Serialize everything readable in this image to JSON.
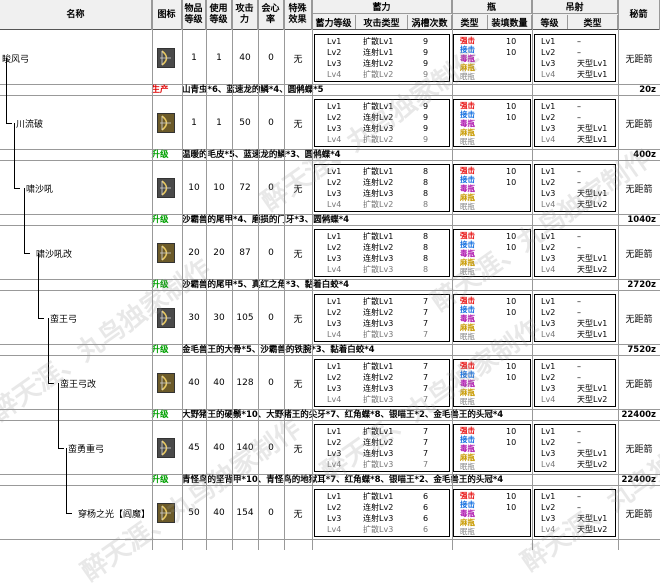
{
  "headers": {
    "name": "名称",
    "icon": "图标",
    "rarity": "物品\n等级",
    "cost": "使用\n等级",
    "attack": "攻击\n力",
    "affinity": "会心\n率",
    "special": "特殊\n效果",
    "charge_group": "蓄力",
    "charge_level": "蓄力等级",
    "attack_type": "攻击类型",
    "slot_count": "涡槽次数",
    "bottle_group": "瓶",
    "bottle_type": "类型",
    "bottle_load": "装填数量",
    "arc_group": "吊射",
    "arc_level": "等级",
    "arc_type": "类型",
    "secret": "秘箭"
  },
  "watermark": [
    "醉天涯、丸鸟独家制作",
    "醉天涯、丸鸟独家制作",
    "醉天涯、丸鸟独家制作",
    "醉天涯、丸鸟独家制作",
    "醉天涯、丸鸟独家制作",
    "醉天涯、丸鸟独家制作"
  ],
  "bottle_names": [
    "强击",
    "接击",
    "毒瓶",
    "麻瓶",
    "眠瓶"
  ],
  "weapons": [
    {
      "name": "睃风弓",
      "rarity": "1",
      "cost": "1",
      "attack": "40",
      "affinity": "0",
      "special": "无",
      "secret": "无距箭",
      "charge": [
        "Lv1",
        "Lv2",
        "Lv3",
        "Lv4"
      ],
      "types": [
        "扩散Lv1",
        "连射Lv1",
        "连射Lv2",
        "扩散Lv2"
      ],
      "slots": [
        "9",
        "9",
        "9",
        "9"
      ],
      "loads": [
        "10",
        "10",
        "",
        ""
      ],
      "arc_lv": [
        "Lv1",
        "Lv2",
        "Lv3",
        "Lv4"
      ],
      "arc_type": [
        "–",
        "–",
        "天型Lv1",
        "天型Lv1"
      ],
      "note_tag": "生产",
      "note": "山青虫*6、蓝速龙的鳞*4、圆鸺蝶*5",
      "price": "20z"
    },
    {
      "name": "川流破",
      "rarity": "1",
      "cost": "1",
      "attack": "50",
      "affinity": "0",
      "special": "无",
      "secret": "无距箭",
      "charge": [
        "Lv1",
        "Lv2",
        "Lv3",
        "Lv4"
      ],
      "types": [
        "扩散Lv1",
        "连射Lv2",
        "连射Lv3",
        "扩散Lv2"
      ],
      "slots": [
        "9",
        "9",
        "9",
        "9"
      ],
      "loads": [
        "10",
        "10",
        "",
        ""
      ],
      "arc_lv": [
        "Lv1",
        "Lv2",
        "Lv3",
        "Lv4"
      ],
      "arc_type": [
        "–",
        "–",
        "天型Lv1",
        "天型Lv1"
      ],
      "note_tag": "升级",
      "note": "温暖的毛皮*5、蓝速龙的鳞*3、圆鸺蝶*4",
      "price": "400z"
    },
    {
      "name": "啸沙吼",
      "rarity": "10",
      "cost": "10",
      "attack": "72",
      "affinity": "0",
      "special": "无",
      "secret": "无距箭",
      "charge": [
        "Lv1",
        "Lv2",
        "Lv3",
        "Lv4"
      ],
      "types": [
        "扩散Lv1",
        "连射Lv2",
        "连射Lv3",
        "扩散Lv2"
      ],
      "slots": [
        "8",
        "8",
        "8",
        "8"
      ],
      "loads": [
        "10",
        "10",
        "",
        ""
      ],
      "arc_lv": [
        "Lv1",
        "Lv2",
        "Lv3",
        "Lv4"
      ],
      "arc_type": [
        "–",
        "–",
        "天型Lv1",
        "天型Lv2"
      ],
      "note_tag": "升级",
      "note": "沙霸兽的尾甲*4、磨损的门牙*3、圆鸺蝶*4",
      "price": "1040z"
    },
    {
      "name": "啸沙吼改",
      "rarity": "20",
      "cost": "20",
      "attack": "87",
      "affinity": "0",
      "special": "无",
      "secret": "无距箭",
      "charge": [
        "Lv1",
        "Lv2",
        "Lv3",
        "Lv4"
      ],
      "types": [
        "扩散Lv1",
        "连射Lv2",
        "连射Lv3",
        "扩散Lv3"
      ],
      "slots": [
        "8",
        "8",
        "8",
        "8"
      ],
      "loads": [
        "10",
        "10",
        "",
        ""
      ],
      "arc_lv": [
        "Lv1",
        "Lv2",
        "Lv3",
        "Lv4"
      ],
      "arc_type": [
        "–",
        "–",
        "天型Lv1",
        "天型Lv2"
      ],
      "note_tag": "升级",
      "note": "沙霸兽的尾甲*5、真红之角*3、黏着白蛟*4",
      "price": "2720z"
    },
    {
      "name": "蛮王弓",
      "rarity": "30",
      "cost": "30",
      "attack": "105",
      "affinity": "0",
      "special": "无",
      "secret": "无距箭",
      "charge": [
        "Lv1",
        "Lv2",
        "Lv3",
        "Lv4"
      ],
      "types": [
        "扩散Lv1",
        "连射Lv2",
        "连射Lv3",
        "扩散Lv3"
      ],
      "slots": [
        "7",
        "7",
        "7",
        "7"
      ],
      "loads": [
        "10",
        "10",
        "",
        ""
      ],
      "arc_lv": [
        "Lv1",
        "Lv2",
        "Lv3",
        "Lv4"
      ],
      "arc_type": [
        "–",
        "–",
        "天型Lv1",
        "天型Lv1"
      ],
      "note_tag": "升级",
      "note": "金毛兽王的大骨*5、沙霸兽的铁腕*3、黏着白蛟*4",
      "price": "7520z"
    },
    {
      "name": "蛮王弓改",
      "rarity": "40",
      "cost": "40",
      "attack": "128",
      "affinity": "0",
      "special": "无",
      "secret": "无距箭",
      "charge": [
        "Lv1",
        "Lv2",
        "Lv3",
        "Lv4"
      ],
      "types": [
        "扩散Lv1",
        "连射Lv2",
        "连射Lv3",
        "扩散Lv3"
      ],
      "slots": [
        "7",
        "7",
        "7",
        "7"
      ],
      "loads": [
        "10",
        "10",
        "",
        ""
      ],
      "arc_lv": [
        "Lv1",
        "Lv2",
        "Lv3",
        "Lv4"
      ],
      "arc_type": [
        "–",
        "–",
        "天型Lv1",
        "天型Lv2"
      ],
      "note_tag": "升级",
      "note": "大野猪王的硬鬃*10、大野猪王的尖牙*7、红角蝶*8、银喵王*2、金毛兽王的头冠*4",
      "price": "22400z"
    },
    {
      "name": "蛮勇重弓",
      "rarity": "45",
      "cost": "40",
      "attack": "140",
      "affinity": "0",
      "special": "无",
      "secret": "无距箭",
      "charge": [
        "Lv1",
        "Lv2",
        "Lv3",
        "Lv4"
      ],
      "types": [
        "扩散Lv1",
        "连射Lv2",
        "连射Lv3",
        "扩散Lv3"
      ],
      "slots": [
        "7",
        "7",
        "7",
        "7"
      ],
      "loads": [
        "10",
        "10",
        "",
        ""
      ],
      "arc_lv": [
        "Lv1",
        "Lv2",
        "Lv3",
        "Lv4"
      ],
      "arc_type": [
        "–",
        "–",
        "天型Lv1",
        "天型Lv2"
      ],
      "note_tag": "升级",
      "note": "青怪鸟的坚背甲*10、青怪鸟的地狱耳*7、红角蝶*8、银喵王*2、金毛兽王的头冠*4",
      "price": "22400z"
    },
    {
      "name": "穿杨之光【阎魔】",
      "rarity": "50",
      "cost": "40",
      "attack": "154",
      "affinity": "0",
      "special": "无",
      "secret": "无距箭",
      "charge": [
        "Lv1",
        "Lv2",
        "Lv3",
        "Lv4"
      ],
      "types": [
        "扩散Lv1",
        "连射Lv2",
        "连射Lv3",
        "扩散Lv3"
      ],
      "slots": [
        "6",
        "6",
        "6",
        "6"
      ],
      "loads": [
        "10",
        "10",
        "",
        ""
      ],
      "arc_lv": [
        "Lv1",
        "Lv2",
        "Lv3",
        "Lv4"
      ],
      "arc_type": [
        "–",
        "–",
        "天型Lv1",
        "天型Lv2"
      ],
      "note_tag": "",
      "note": "",
      "price": ""
    }
  ]
}
